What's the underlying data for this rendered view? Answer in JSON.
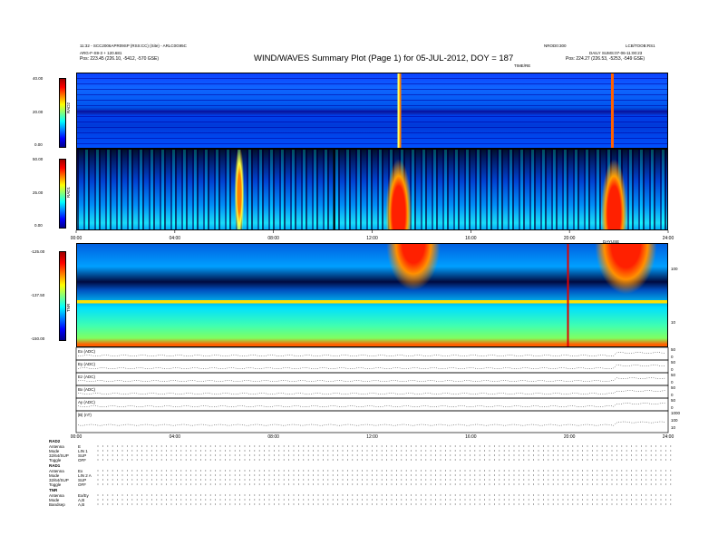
{
  "header": {
    "title": "WIND/WAVES Summary Plot (Page 1) for 05-JUL-2012, DOY = 187",
    "left_line1": "11:32 - SCC2006APR09SP (RSS:CC) (Site) - ARLC0G95C",
    "left_line2": "ARG-F-S9-3 + 120.681",
    "left_pos": "Pos:   223.45 (226.10, -5412, -570 GSE)",
    "right_line1": "LCB/TOOB:RS1",
    "right_line2": "DAILY  SUMS:07-06-11:00:23",
    "right_pos": "Pos:   224.27 (226.53, -5253, -549 GSE)",
    "mid_label": "NROD0:300",
    "time_label": "TIME/RE",
    "mid_label2": "DAYUSE"
  },
  "colors": {
    "spectrum_low": "#00008b",
    "spectrum_high": "#ff0000",
    "burst": "#ff2000",
    "marker": "#e00000"
  },
  "chart_data": [
    {
      "type": "heatmap",
      "panel": "RAD2",
      "ylabel": "RAD2",
      "yticks": [
        "40.00",
        "20.00",
        "0.00"
      ],
      "ylim": [
        0,
        40
      ]
    },
    {
      "type": "heatmap",
      "panel": "RAD1",
      "ylabel": "RAD1",
      "yticks": [
        "50.00",
        "25.00",
        "0.00"
      ],
      "ylim": [
        0,
        50
      ],
      "xticks": [
        "00:00",
        "04:00",
        "08:00",
        "12:00",
        "16:00",
        "20:00",
        "24:00"
      ]
    },
    {
      "type": "heatmap",
      "panel": "TNR",
      "ylabel": "TNR",
      "yticks": [
        "-125.00",
        "-137.50",
        "-150.00"
      ],
      "ylim": [
        -150,
        -125
      ],
      "right_ticks": [
        "100",
        "10"
      ],
      "marker_hour": 20
    },
    {
      "type": "line",
      "panels": [
        {
          "label": "Ex (ADC)",
          "right": [
            "50",
            "0"
          ]
        },
        {
          "label": "Ey (ADC)",
          "right": [
            "50",
            "0"
          ]
        },
        {
          "label": "Ez (ADC)",
          "right": [
            "50",
            "0"
          ]
        },
        {
          "label": "Bx (ADC)",
          "right": [
            "50",
            "0"
          ]
        },
        {
          "label": "Ay (ADC)",
          "right": [
            "50",
            "0"
          ]
        },
        {
          "label": "|B| (nT)",
          "right": [
            "1000",
            "100",
            "10"
          ]
        }
      ],
      "xticks": [
        "00:00",
        "04:00",
        "08:00",
        "12:00",
        "16:00",
        "20:00",
        "24:00"
      ]
    }
  ],
  "footer": {
    "rad2_title": "RAD2",
    "rad2_rows": [
      {
        "k": "Antenna",
        "v": "E"
      },
      {
        "k": "Mode",
        "v": "LIN 1"
      },
      {
        "k": "32/64/SUP",
        "v": "SUP"
      },
      {
        "k": "Toggle",
        "v": "OFF"
      }
    ],
    "rad1_title": "RAD1",
    "rad1_rows": [
      {
        "k": "Antenna",
        "v": "Ex"
      },
      {
        "k": "Mode",
        "v": "LIN 2 A"
      },
      {
        "k": "32/64/SUP",
        "v": "SUP"
      },
      {
        "k": "Toggle",
        "v": "OFF"
      }
    ],
    "tnr_title": "TNR",
    "tnr_rows": [
      {
        "k": "Antenna",
        "v": "Ex/Ey"
      },
      {
        "k": "Mode",
        "v": "A,B"
      },
      {
        "k": "Bandsep",
        "v": "A,B"
      }
    ]
  }
}
